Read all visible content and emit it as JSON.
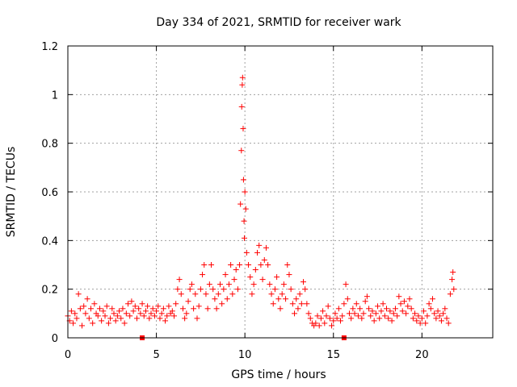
{
  "chart_data": {
    "type": "scatter",
    "title": "Day 334 of 2021, SRMTID for receiver wark",
    "xlabel": "GPS time / hours",
    "ylabel": "SRMTID / TECUs",
    "xlim": [
      0,
      24
    ],
    "ylim": [
      0,
      1.2
    ],
    "xticks": [
      0,
      5,
      10,
      15,
      20
    ],
    "xtick_labels": [
      "0",
      "5",
      "10",
      "15",
      "20"
    ],
    "yticks": [
      0,
      0.2,
      0.4,
      0.6,
      0.8,
      1.0,
      1.2
    ],
    "ytick_labels": [
      "0",
      "0.2",
      "0.4",
      "0.6",
      "0.8",
      "1",
      "1.2"
    ],
    "grid": true,
    "marker": "+",
    "color": "#ff0000",
    "series": [
      {
        "name": "SRMTID",
        "points": [
          [
            0.0,
            0.09
          ],
          [
            0.1,
            0.07
          ],
          [
            0.2,
            0.11
          ],
          [
            0.3,
            0.06
          ],
          [
            0.4,
            0.1
          ],
          [
            0.5,
            0.08
          ],
          [
            0.6,
            0.18
          ],
          [
            0.7,
            0.12
          ],
          [
            0.8,
            0.05
          ],
          [
            0.9,
            0.13
          ],
          [
            1.0,
            0.1
          ],
          [
            1.1,
            0.16
          ],
          [
            1.2,
            0.08
          ],
          [
            1.3,
            0.12
          ],
          [
            1.4,
            0.06
          ],
          [
            1.5,
            0.14
          ],
          [
            1.6,
            0.1
          ],
          [
            1.7,
            0.09
          ],
          [
            1.8,
            0.12
          ],
          [
            1.9,
            0.07
          ],
          [
            2.0,
            0.11
          ],
          [
            2.1,
            0.09
          ],
          [
            2.2,
            0.13
          ],
          [
            2.3,
            0.06
          ],
          [
            2.4,
            0.08
          ],
          [
            2.5,
            0.12
          ],
          [
            2.6,
            0.1
          ],
          [
            2.7,
            0.07
          ],
          [
            2.8,
            0.09
          ],
          [
            2.9,
            0.11
          ],
          [
            3.0,
            0.08
          ],
          [
            3.1,
            0.12
          ],
          [
            3.2,
            0.06
          ],
          [
            3.3,
            0.1
          ],
          [
            3.4,
            0.14
          ],
          [
            3.5,
            0.09
          ],
          [
            3.6,
            0.15
          ],
          [
            3.7,
            0.11
          ],
          [
            3.8,
            0.13
          ],
          [
            3.9,
            0.08
          ],
          [
            4.0,
            0.12
          ],
          [
            4.1,
            0.1
          ],
          [
            4.2,
            0.14
          ],
          [
            4.3,
            0.09
          ],
          [
            4.4,
            0.11
          ],
          [
            4.5,
            0.13
          ],
          [
            4.6,
            0.08
          ],
          [
            4.7,
            0.1
          ],
          [
            4.8,
            0.12
          ],
          [
            4.9,
            0.09
          ],
          [
            5.0,
            0.11
          ],
          [
            5.1,
            0.13
          ],
          [
            5.2,
            0.08
          ],
          [
            5.3,
            0.1
          ],
          [
            5.4,
            0.12
          ],
          [
            5.5,
            0.07
          ],
          [
            5.6,
            0.09
          ],
          [
            5.7,
            0.13
          ],
          [
            5.8,
            0.1
          ],
          [
            5.9,
            0.11
          ],
          [
            6.0,
            0.09
          ],
          [
            6.1,
            0.14
          ],
          [
            6.2,
            0.2
          ],
          [
            6.3,
            0.24
          ],
          [
            6.4,
            0.18
          ],
          [
            6.5,
            0.12
          ],
          [
            6.6,
            0.08
          ],
          [
            6.7,
            0.1
          ],
          [
            6.8,
            0.15
          ],
          [
            6.9,
            0.2
          ],
          [
            7.0,
            0.22
          ],
          [
            7.1,
            0.12
          ],
          [
            7.2,
            0.18
          ],
          [
            7.3,
            0.08
          ],
          [
            7.4,
            0.13
          ],
          [
            7.5,
            0.2
          ],
          [
            7.6,
            0.26
          ],
          [
            7.7,
            0.3
          ],
          [
            7.8,
            0.18
          ],
          [
            7.9,
            0.12
          ],
          [
            8.0,
            0.22
          ],
          [
            8.1,
            0.3
          ],
          [
            8.2,
            0.2
          ],
          [
            8.3,
            0.16
          ],
          [
            8.4,
            0.12
          ],
          [
            8.5,
            0.18
          ],
          [
            8.6,
            0.22
          ],
          [
            8.7,
            0.14
          ],
          [
            8.8,
            0.2
          ],
          [
            8.9,
            0.26
          ],
          [
            9.0,
            0.16
          ],
          [
            9.1,
            0.22
          ],
          [
            9.2,
            0.3
          ],
          [
            9.3,
            0.18
          ],
          [
            9.4,
            0.24
          ],
          [
            9.5,
            0.28
          ],
          [
            9.6,
            0.2
          ],
          [
            9.7,
            0.3
          ],
          [
            9.75,
            0.55
          ],
          [
            9.8,
            0.77
          ],
          [
            9.82,
            0.95
          ],
          [
            9.85,
            1.04
          ],
          [
            9.87,
            1.07
          ],
          [
            9.9,
            0.86
          ],
          [
            9.92,
            0.65
          ],
          [
            9.95,
            0.48
          ],
          [
            9.97,
            0.41
          ],
          [
            10.0,
            0.6
          ],
          [
            10.05,
            0.53
          ],
          [
            10.1,
            0.35
          ],
          [
            10.2,
            0.3
          ],
          [
            10.3,
            0.25
          ],
          [
            10.4,
            0.18
          ],
          [
            10.5,
            0.22
          ],
          [
            10.6,
            0.28
          ],
          [
            10.7,
            0.35
          ],
          [
            10.8,
            0.38
          ],
          [
            10.9,
            0.3
          ],
          [
            11.0,
            0.24
          ],
          [
            11.1,
            0.32
          ],
          [
            11.2,
            0.37
          ],
          [
            11.3,
            0.3
          ],
          [
            11.4,
            0.22
          ],
          [
            11.5,
            0.18
          ],
          [
            11.6,
            0.14
          ],
          [
            11.7,
            0.2
          ],
          [
            11.8,
            0.25
          ],
          [
            11.9,
            0.16
          ],
          [
            12.0,
            0.12
          ],
          [
            12.1,
            0.18
          ],
          [
            12.2,
            0.22
          ],
          [
            12.3,
            0.16
          ],
          [
            12.4,
            0.3
          ],
          [
            12.5,
            0.26
          ],
          [
            12.6,
            0.2
          ],
          [
            12.7,
            0.14
          ],
          [
            12.8,
            0.1
          ],
          [
            12.9,
            0.16
          ],
          [
            13.0,
            0.12
          ],
          [
            13.1,
            0.18
          ],
          [
            13.2,
            0.14
          ],
          [
            13.3,
            0.23
          ],
          [
            13.4,
            0.2
          ],
          [
            13.5,
            0.14
          ],
          [
            13.6,
            0.1
          ],
          [
            13.7,
            0.08
          ],
          [
            13.8,
            0.06
          ],
          [
            13.9,
            0.05
          ],
          [
            14.0,
            0.06
          ],
          [
            14.1,
            0.09
          ],
          [
            14.2,
            0.05
          ],
          [
            14.3,
            0.08
          ],
          [
            14.4,
            0.11
          ],
          [
            14.5,
            0.06
          ],
          [
            14.6,
            0.09
          ],
          [
            14.7,
            0.13
          ],
          [
            14.8,
            0.08
          ],
          [
            14.9,
            0.05
          ],
          [
            15.0,
            0.07
          ],
          [
            15.1,
            0.1
          ],
          [
            15.2,
            0.08
          ],
          [
            15.3,
            0.12
          ],
          [
            15.4,
            0.07
          ],
          [
            15.5,
            0.09
          ],
          [
            15.6,
            0.14
          ],
          [
            15.7,
            0.22
          ],
          [
            15.8,
            0.16
          ],
          [
            15.9,
            0.1
          ],
          [
            16.0,
            0.08
          ],
          [
            16.1,
            0.12
          ],
          [
            16.2,
            0.1
          ],
          [
            16.3,
            0.14
          ],
          [
            16.4,
            0.09
          ],
          [
            16.5,
            0.12
          ],
          [
            16.6,
            0.08
          ],
          [
            16.7,
            0.1
          ],
          [
            16.8,
            0.15
          ],
          [
            16.9,
            0.17
          ],
          [
            17.0,
            0.12
          ],
          [
            17.1,
            0.09
          ],
          [
            17.2,
            0.11
          ],
          [
            17.3,
            0.07
          ],
          [
            17.4,
            0.1
          ],
          [
            17.5,
            0.13
          ],
          [
            17.6,
            0.08
          ],
          [
            17.7,
            0.11
          ],
          [
            17.8,
            0.14
          ],
          [
            17.9,
            0.09
          ],
          [
            18.0,
            0.12
          ],
          [
            18.1,
            0.08
          ],
          [
            18.2,
            0.11
          ],
          [
            18.3,
            0.07
          ],
          [
            18.4,
            0.1
          ],
          [
            18.5,
            0.12
          ],
          [
            18.6,
            0.09
          ],
          [
            18.7,
            0.17
          ],
          [
            18.8,
            0.14
          ],
          [
            18.9,
            0.11
          ],
          [
            19.0,
            0.15
          ],
          [
            19.1,
            0.1
          ],
          [
            19.2,
            0.13
          ],
          [
            19.3,
            0.16
          ],
          [
            19.4,
            0.12
          ],
          [
            19.5,
            0.08
          ],
          [
            19.6,
            0.1
          ],
          [
            19.7,
            0.07
          ],
          [
            19.8,
            0.09
          ],
          [
            19.9,
            0.06
          ],
          [
            20.0,
            0.08
          ],
          [
            20.1,
            0.11
          ],
          [
            20.2,
            0.06
          ],
          [
            20.3,
            0.09
          ],
          [
            20.4,
            0.14
          ],
          [
            20.5,
            0.12
          ],
          [
            20.6,
            0.16
          ],
          [
            20.7,
            0.1
          ],
          [
            20.8,
            0.08
          ],
          [
            20.9,
            0.11
          ],
          [
            21.0,
            0.09
          ],
          [
            21.1,
            0.07
          ],
          [
            21.2,
            0.1
          ],
          [
            21.3,
            0.12
          ],
          [
            21.4,
            0.08
          ],
          [
            21.5,
            0.06
          ],
          [
            21.6,
            0.18
          ],
          [
            21.7,
            0.24
          ],
          [
            21.75,
            0.27
          ],
          [
            21.8,
            0.2
          ]
        ],
        "outliers": [
          [
            4.2,
            0.0
          ],
          [
            15.6,
            0.0
          ]
        ]
      }
    ]
  }
}
